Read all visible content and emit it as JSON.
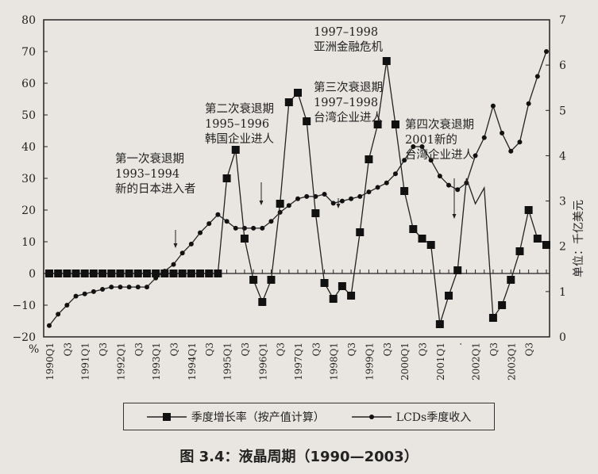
{
  "chart_data": {
    "type": "line",
    "title": "图 3.4：液晶周期（1990—2003）",
    "xlabel": "",
    "ylabel_left": "%",
    "ylabel_right": "单位：千亿美元",
    "ylim_left": [
      -20,
      80
    ],
    "ylim_right": [
      0,
      7
    ],
    "yticks_left": [
      80,
      70,
      60,
      50,
      40,
      30,
      20,
      10,
      0,
      -10,
      -20
    ],
    "yticks_right": [
      7,
      6,
      5,
      4,
      3,
      2,
      1,
      0
    ],
    "grid": false,
    "legend_position": "bottom",
    "x_tick_labels": [
      "1990Q1",
      "Q3",
      "1991Q1",
      "Q3",
      "1992Q1",
      "Q3",
      "1993Q1",
      "Q3",
      "1994Q1",
      "Q3",
      "1995Q1",
      "Q3",
      "1996Q1",
      "Q3",
      "1997Q1",
      "Q3",
      "1998Q1",
      "Q3",
      "1999Q1",
      "Q3",
      "2000Q1",
      "Q3",
      "2001Q1",
      ".",
      "2002Q1",
      "Q3",
      "2003Q1",
      "Q3"
    ],
    "series": [
      {
        "name": "季度增长率（按产值计算）",
        "axis": "left",
        "marker": "square",
        "values": [
          0,
          0,
          0,
          0,
          0,
          0,
          0,
          0,
          0,
          0,
          0,
          0,
          0,
          0,
          0,
          0,
          0,
          0,
          0,
          0,
          30,
          39,
          11,
          -2,
          -9,
          -2,
          22,
          54,
          57,
          48,
          19,
          -3,
          -8,
          -4,
          -7,
          13,
          36,
          47,
          67,
          47,
          26,
          14,
          11,
          9,
          -16,
          -7,
          1,
          30,
          22,
          27,
          -14,
          -10,
          -2,
          7,
          20,
          11,
          9
        ]
      },
      {
        "name": "LCDs季度收入",
        "axis": "right",
        "marker": "diamond",
        "values": [
          0.25,
          0.5,
          0.7,
          0.9,
          0.95,
          1.0,
          1.05,
          1.1,
          1.1,
          1.1,
          1.1,
          1.1,
          1.3,
          1.45,
          1.6,
          1.85,
          2.05,
          2.3,
          2.5,
          2.7,
          2.55,
          2.4,
          2.4,
          2.4,
          2.4,
          2.55,
          2.75,
          2.9,
          3.05,
          3.1,
          3.1,
          3.15,
          2.95,
          3.0,
          3.05,
          3.1,
          3.2,
          3.3,
          3.4,
          3.6,
          3.9,
          4.2,
          4.2,
          3.9,
          3.55,
          3.35,
          3.25,
          3.4,
          4.0,
          4.4,
          5.1,
          4.5,
          4.1,
          4.3,
          5.15,
          5.75,
          6.3
        ]
      }
    ],
    "annotations": [
      {
        "lines": [
          "第一次衰退期",
          "1993–1994",
          "新的日本进入者"
        ]
      },
      {
        "lines": [
          "第二次衰退期",
          "1995–1996",
          "韩国企业进人"
        ]
      },
      {
        "lines": [
          "1997–1998",
          "亚洲金融危机"
        ]
      },
      {
        "lines": [
          "第三次衰退期",
          "1997–1998",
          "台湾企业进人"
        ]
      },
      {
        "lines": [
          "第四次衰退期",
          "2001新的",
          "台湾企业进人"
        ]
      }
    ]
  },
  "legend": {
    "item1": "季度增长率（按产值计算）",
    "item2": "LCDs季度收入"
  },
  "caption": "图 3.4：液晶周期（1990—2003）"
}
